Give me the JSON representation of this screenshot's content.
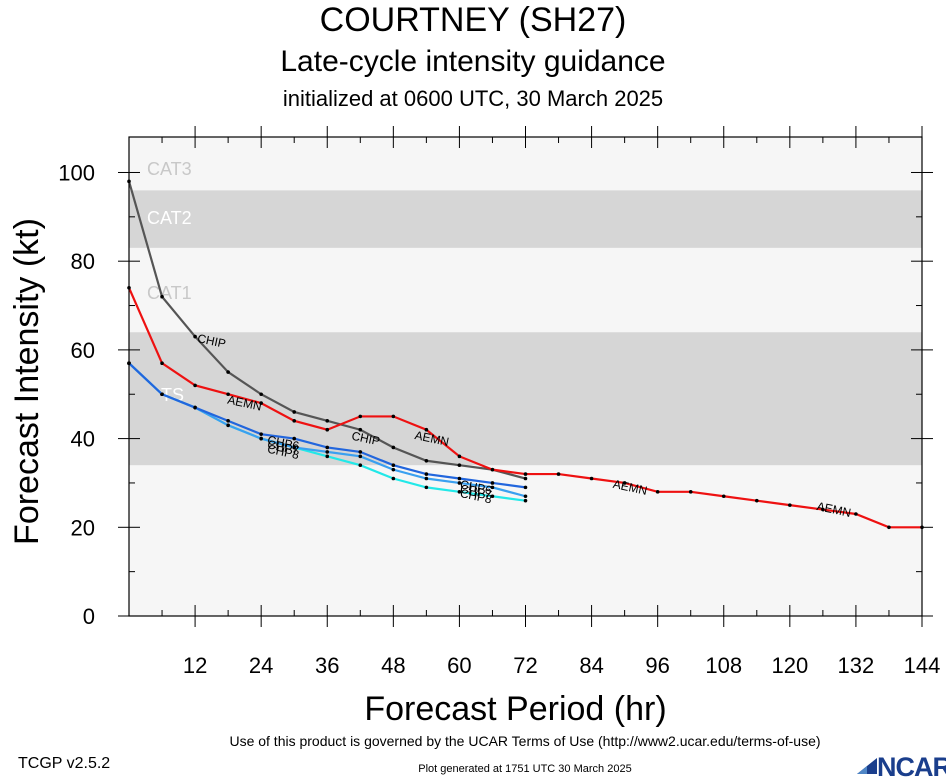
{
  "header": {
    "title": "COURTNEY (SH27)",
    "subtitle": "Late-cycle intensity guidance",
    "initialized": "initialized at 0600 UTC, 30 March 2025"
  },
  "footer": {
    "terms": "Use of this product is governed by the UCAR Terms of Use (http://www2.ucar.edu/terms-of-use)",
    "generated": "Plot generated at 1751 UTC   30 March 2025",
    "version": "TCGP v2.5.2",
    "logo": "NCAR"
  },
  "chart_data": {
    "type": "line",
    "xlabel": "Forecast Period (hr)",
    "ylabel": "Forecast Intensity (kt)",
    "xlim": [
      0,
      144
    ],
    "ylim": [
      0,
      108
    ],
    "xticks": [
      12,
      24,
      36,
      48,
      60,
      72,
      84,
      96,
      108,
      120,
      132,
      144
    ],
    "yticks": [
      0,
      20,
      40,
      60,
      80,
      100
    ],
    "bands": [
      {
        "label": "TS",
        "from": 34,
        "to": 64,
        "color": "#d6d6d6"
      },
      {
        "label": "CAT1",
        "from": 64,
        "to": 83,
        "color": "#f6f6f6"
      },
      {
        "label": "CAT2",
        "from": 83,
        "to": 96,
        "color": "#d6d6d6"
      },
      {
        "label": "CAT3",
        "from": 96,
        "to": 113,
        "color": "#f6f6f6"
      }
    ],
    "below_band_color": "#f6f6f6",
    "series": [
      {
        "name": "AEMN",
        "color": "#ee1111",
        "x": [
          0,
          6,
          12,
          18,
          24,
          30,
          36,
          42,
          48,
          54,
          60,
          66,
          72,
          78,
          84,
          90,
          96,
          102,
          108,
          114,
          120,
          126,
          132,
          138,
          144
        ],
        "y": [
          74,
          57,
          52,
          50,
          48,
          44,
          42,
          45,
          45,
          42,
          36,
          33,
          32,
          32,
          31,
          30,
          28,
          28,
          27,
          26,
          25,
          24,
          23,
          20,
          20
        ],
        "labels": [
          {
            "x": 21,
            "y": 48
          },
          {
            "x": 55,
            "y": 40
          },
          {
            "x": 91,
            "y": 29
          },
          {
            "x": 128,
            "y": 24
          }
        ]
      },
      {
        "name": "CHIP",
        "color": "#555555",
        "x": [
          0,
          6,
          12,
          18,
          24,
          30,
          36,
          42,
          48,
          54,
          60,
          66,
          72
        ],
        "y": [
          98,
          72,
          63,
          55,
          50,
          46,
          44,
          42,
          38,
          35,
          34,
          33,
          31
        ],
        "labels": [
          {
            "x": 15,
            "y": 62
          },
          {
            "x": 43,
            "y": 40
          }
        ]
      },
      {
        "name": "CHP6",
        "color": "#2266dd",
        "x": [
          0,
          6,
          12,
          18,
          24,
          30,
          36,
          42,
          48,
          54,
          60,
          66,
          72
        ],
        "y": [
          57,
          50,
          47,
          44,
          41,
          40,
          38,
          37,
          34,
          32,
          31,
          30,
          29
        ],
        "labels": [
          {
            "x": 28,
            "y": 39
          },
          {
            "x": 63,
            "y": 29
          }
        ]
      },
      {
        "name": "CHP7",
        "color": "#3aa0f0",
        "x": [
          0,
          6,
          12,
          18,
          24,
          30,
          36,
          42,
          48,
          54,
          60,
          66,
          72
        ],
        "y": [
          57,
          50,
          47,
          43,
          40,
          38,
          37,
          36,
          33,
          31,
          30,
          29,
          27
        ],
        "labels": [
          {
            "x": 28,
            "y": 38
          },
          {
            "x": 63,
            "y": 28
          }
        ]
      },
      {
        "name": "CHP8",
        "color": "#22e8e8",
        "x": [
          0,
          6,
          12,
          18,
          24,
          30,
          36,
          42,
          48,
          54,
          60,
          66,
          72
        ],
        "y": [
          57,
          50,
          47,
          43,
          40,
          38,
          36,
          34,
          31,
          29,
          28,
          27,
          26
        ],
        "labels": [
          {
            "x": 28,
            "y": 37
          },
          {
            "x": 63,
            "y": 27
          }
        ]
      }
    ]
  }
}
